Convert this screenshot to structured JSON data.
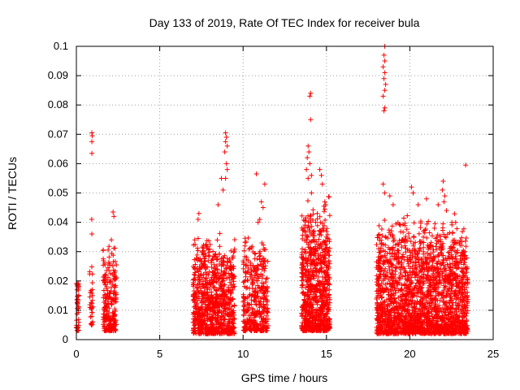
{
  "chart_data": {
    "type": "scatter",
    "title": "Day 133 of 2019, Rate Of TEC Index for receiver bula",
    "xlabel": "GPS time / hours",
    "ylabel": "ROTI / TECUs",
    "xlim": [
      0,
      25
    ],
    "ylim": [
      0,
      0.1
    ],
    "xticks": [
      0,
      5,
      10,
      15,
      20,
      25
    ],
    "xtick_labels": [
      "0",
      "5",
      "10",
      "15",
      "20",
      "25"
    ],
    "yticks": [
      0,
      0.01,
      0.02,
      0.03,
      0.04,
      0.05,
      0.06,
      0.07,
      0.08,
      0.09,
      0.1
    ],
    "ytick_labels": [
      "0",
      "0.01",
      "0.02",
      "0.03",
      "0.04",
      "0.05",
      "0.06",
      "0.07",
      "0.08",
      "0.09",
      "0.1"
    ],
    "grid": true,
    "marker": "+",
    "color": "#ff0000",
    "clusters": [
      {
        "x": [
          0.0,
          0.15
        ],
        "y_typical": [
          0.003,
          0.02
        ],
        "count": 40
      },
      {
        "x": [
          0.8,
          1.0
        ],
        "y_typical": [
          0.005,
          0.025
        ],
        "count": 30
      },
      {
        "x": [
          1.6,
          2.4
        ],
        "y_typical": [
          0.003,
          0.028
        ],
        "count": 220
      },
      {
        "x": [
          7.0,
          9.5
        ],
        "y_typical": [
          0.002,
          0.03
        ],
        "count": 900
      },
      {
        "x": [
          10.0,
          11.5
        ],
        "y_typical": [
          0.003,
          0.03
        ],
        "count": 380
      },
      {
        "x": [
          13.5,
          15.2
        ],
        "y_typical": [
          0.003,
          0.04
        ],
        "count": 820
      },
      {
        "x": [
          18.0,
          23.5
        ],
        "y_typical": [
          0.002,
          0.035
        ],
        "count": 2100
      }
    ],
    "points": [
      {
        "x": 0.05,
        "y": 0.019
      },
      {
        "x": 0.05,
        "y": 0.017
      },
      {
        "x": 0.0,
        "y": 0.004
      },
      {
        "x": 0.93,
        "y": 0.0705
      },
      {
        "x": 0.95,
        "y": 0.0695
      },
      {
        "x": 0.93,
        "y": 0.0675
      },
      {
        "x": 0.93,
        "y": 0.0635
      },
      {
        "x": 0.92,
        "y": 0.041
      },
      {
        "x": 0.93,
        "y": 0.036
      },
      {
        "x": 2.2,
        "y": 0.0435
      },
      {
        "x": 2.25,
        "y": 0.042
      },
      {
        "x": 2.1,
        "y": 0.034
      },
      {
        "x": 7.1,
        "y": 0.034
      },
      {
        "x": 7.35,
        "y": 0.043
      },
      {
        "x": 7.3,
        "y": 0.041
      },
      {
        "x": 8.5,
        "y": 0.046
      },
      {
        "x": 8.8,
        "y": 0.051
      },
      {
        "x": 8.7,
        "y": 0.055
      },
      {
        "x": 8.95,
        "y": 0.0705
      },
      {
        "x": 9.0,
        "y": 0.069
      },
      {
        "x": 8.95,
        "y": 0.0675
      },
      {
        "x": 9.05,
        "y": 0.066
      },
      {
        "x": 8.9,
        "y": 0.064
      },
      {
        "x": 9.0,
        "y": 0.06
      },
      {
        "x": 9.05,
        "y": 0.058
      },
      {
        "x": 8.95,
        "y": 0.055
      },
      {
        "x": 10.8,
        "y": 0.0565
      },
      {
        "x": 11.3,
        "y": 0.053
      },
      {
        "x": 11.1,
        "y": 0.047
      },
      {
        "x": 11.2,
        "y": 0.045
      },
      {
        "x": 11.0,
        "y": 0.041
      },
      {
        "x": 10.9,
        "y": 0.04
      },
      {
        "x": 14.05,
        "y": 0.084
      },
      {
        "x": 14.0,
        "y": 0.083
      },
      {
        "x": 14.05,
        "y": 0.075
      },
      {
        "x": 13.9,
        "y": 0.066
      },
      {
        "x": 13.95,
        "y": 0.064
      },
      {
        "x": 13.85,
        "y": 0.062
      },
      {
        "x": 14.0,
        "y": 0.06
      },
      {
        "x": 13.8,
        "y": 0.058
      },
      {
        "x": 14.1,
        "y": 0.056
      },
      {
        "x": 13.9,
        "y": 0.055
      },
      {
        "x": 14.1,
        "y": 0.05
      },
      {
        "x": 14.6,
        "y": 0.058
      },
      {
        "x": 14.7,
        "y": 0.056
      },
      {
        "x": 14.75,
        "y": 0.053
      },
      {
        "x": 14.9,
        "y": 0.047
      },
      {
        "x": 18.5,
        "y": 0.1
      },
      {
        "x": 18.45,
        "y": 0.097
      },
      {
        "x": 18.5,
        "y": 0.095
      },
      {
        "x": 18.4,
        "y": 0.093
      },
      {
        "x": 18.5,
        "y": 0.091
      },
      {
        "x": 18.45,
        "y": 0.089
      },
      {
        "x": 18.55,
        "y": 0.087
      },
      {
        "x": 18.5,
        "y": 0.085
      },
      {
        "x": 18.4,
        "y": 0.083
      },
      {
        "x": 18.5,
        "y": 0.079
      },
      {
        "x": 18.45,
        "y": 0.078
      },
      {
        "x": 18.4,
        "y": 0.053
      },
      {
        "x": 18.5,
        "y": 0.05
      },
      {
        "x": 18.8,
        "y": 0.049
      },
      {
        "x": 19.0,
        "y": 0.046
      },
      {
        "x": 20.1,
        "y": 0.052
      },
      {
        "x": 20.2,
        "y": 0.05
      },
      {
        "x": 20.5,
        "y": 0.046
      },
      {
        "x": 21.0,
        "y": 0.048
      },
      {
        "x": 21.7,
        "y": 0.046
      },
      {
        "x": 22.0,
        "y": 0.054
      },
      {
        "x": 21.95,
        "y": 0.051
      },
      {
        "x": 22.1,
        "y": 0.049
      },
      {
        "x": 22.05,
        "y": 0.047
      },
      {
        "x": 22.2,
        "y": 0.044
      },
      {
        "x": 23.35,
        "y": 0.0595
      },
      {
        "x": 23.3,
        "y": 0.03
      }
    ]
  }
}
